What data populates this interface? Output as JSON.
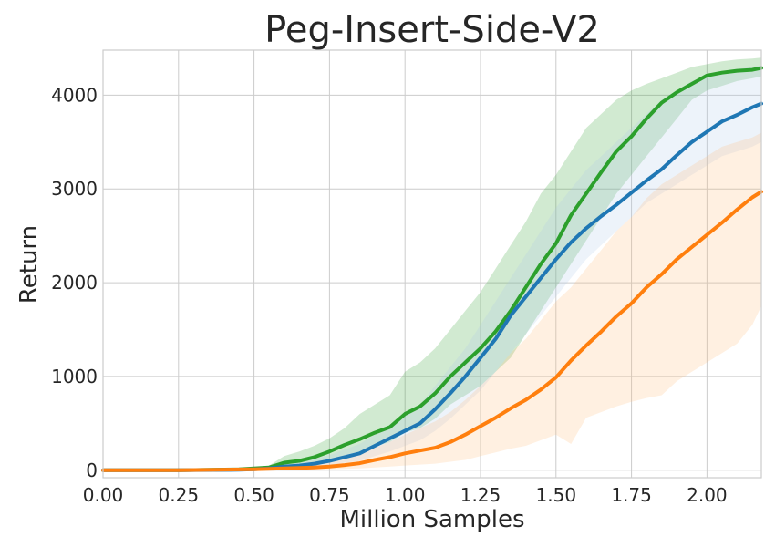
{
  "chart_data": {
    "type": "line",
    "title": "Peg-Insert-Side-V2",
    "xlabel": "Million Samples",
    "ylabel": "Return",
    "xlim": [
      0,
      2.18
    ],
    "ylim": [
      -80,
      4480
    ],
    "xticks": [
      0,
      0.25,
      0.5,
      0.75,
      1.0,
      1.25,
      1.5,
      1.75,
      2.0
    ],
    "xtick_labels": [
      "0.00",
      "0.25",
      "0.50",
      "0.75",
      "1.00",
      "1.25",
      "1.50",
      "1.75",
      "2.00"
    ],
    "yticks": [
      0,
      1000,
      2000,
      3000,
      4000
    ],
    "ytick_labels": [
      "0",
      "1000",
      "2000",
      "3000",
      "4000"
    ],
    "grid": true,
    "shaded_band": "variance",
    "series": [
      {
        "color": "#2ca02c",
        "fill": "#2ca02c",
        "x": [
          0,
          0.25,
          0.45,
          0.5,
          0.55,
          0.6,
          0.65,
          0.7,
          0.75,
          0.8,
          0.85,
          0.9,
          0.95,
          1.0,
          1.05,
          1.1,
          1.15,
          1.2,
          1.25,
          1.3,
          1.35,
          1.4,
          1.45,
          1.5,
          1.55,
          1.6,
          1.65,
          1.7,
          1.75,
          1.8,
          1.85,
          1.9,
          1.95,
          2.0,
          2.05,
          2.1,
          2.15,
          2.18
        ],
        "y": [
          0,
          0,
          10,
          20,
          30,
          80,
          100,
          140,
          200,
          270,
          330,
          400,
          460,
          600,
          680,
          820,
          1000,
          1150,
          1300,
          1480,
          1700,
          1950,
          2200,
          2420,
          2720,
          2950,
          3180,
          3400,
          3560,
          3750,
          3920,
          4030,
          4120,
          4210,
          4240,
          4260,
          4270,
          4290
        ],
        "lower": [
          0,
          0,
          5,
          10,
          20,
          40,
          60,
          80,
          110,
          160,
          200,
          250,
          300,
          400,
          450,
          550,
          700,
          800,
          900,
          1050,
          1200,
          1450,
          1700,
          1950,
          2200,
          2450,
          2700,
          2950,
          3150,
          3350,
          3550,
          3750,
          3950,
          4050,
          4100,
          4150,
          4180,
          4200
        ],
        "upper": [
          0,
          0,
          15,
          30,
          50,
          150,
          200,
          260,
          340,
          450,
          600,
          700,
          800,
          1050,
          1150,
          1300,
          1500,
          1700,
          1900,
          2150,
          2400,
          2650,
          2950,
          3150,
          3400,
          3650,
          3800,
          3950,
          4050,
          4120,
          4180,
          4240,
          4300,
          4330,
          4360,
          4380,
          4390,
          4400
        ]
      },
      {
        "color": "#1f77b4",
        "fill": "#aec7e8",
        "x": [
          0,
          0.25,
          0.45,
          0.5,
          0.55,
          0.6,
          0.65,
          0.7,
          0.75,
          0.8,
          0.85,
          0.9,
          0.95,
          1.0,
          1.05,
          1.1,
          1.15,
          1.2,
          1.25,
          1.3,
          1.35,
          1.4,
          1.45,
          1.5,
          1.55,
          1.6,
          1.65,
          1.7,
          1.75,
          1.8,
          1.85,
          1.9,
          1.95,
          2.0,
          2.05,
          2.1,
          2.15,
          2.18
        ],
        "y": [
          0,
          0,
          5,
          10,
          20,
          40,
          50,
          70,
          100,
          140,
          180,
          260,
          340,
          420,
          500,
          650,
          820,
          1000,
          1200,
          1400,
          1650,
          1850,
          2050,
          2250,
          2430,
          2580,
          2710,
          2830,
          2960,
          3090,
          3210,
          3360,
          3500,
          3610,
          3720,
          3790,
          3870,
          3910
        ],
        "lower": [
          0,
          0,
          3,
          5,
          10,
          20,
          30,
          40,
          55,
          80,
          100,
          150,
          200,
          260,
          320,
          420,
          550,
          700,
          850,
          1050,
          1250,
          1450,
          1650,
          1850,
          2050,
          2250,
          2400,
          2550,
          2700,
          2850,
          2950,
          3050,
          3150,
          3250,
          3350,
          3400,
          3450,
          3500
        ],
        "upper": [
          0,
          0,
          10,
          20,
          35,
          70,
          90,
          120,
          160,
          220,
          280,
          380,
          480,
          600,
          700,
          900,
          1100,
          1300,
          1550,
          1800,
          2050,
          2300,
          2550,
          2800,
          3000,
          3200,
          3350,
          3500,
          3650,
          3800,
          3950,
          4050,
          4150,
          4200,
          4250,
          4280,
          4300,
          4320
        ]
      },
      {
        "color": "#ff7f0e",
        "fill": "#ffbb78",
        "x": [
          0,
          0.25,
          0.5,
          0.55,
          0.6,
          0.65,
          0.7,
          0.75,
          0.8,
          0.85,
          0.9,
          0.95,
          1.0,
          1.05,
          1.1,
          1.15,
          1.2,
          1.25,
          1.3,
          1.35,
          1.4,
          1.45,
          1.5,
          1.55,
          1.6,
          1.65,
          1.7,
          1.75,
          1.8,
          1.85,
          1.9,
          1.95,
          2.0,
          2.05,
          2.1,
          2.15,
          2.18
        ],
        "y": [
          0,
          0,
          10,
          15,
          20,
          25,
          30,
          40,
          55,
          75,
          110,
          140,
          180,
          210,
          240,
          300,
          380,
          470,
          560,
          660,
          750,
          860,
          990,
          1170,
          1330,
          1480,
          1640,
          1780,
          1950,
          2090,
          2250,
          2380,
          2510,
          2640,
          2780,
          2910,
          2970
        ],
        "lower": [
          0,
          0,
          0,
          0,
          5,
          5,
          10,
          10,
          15,
          20,
          30,
          40,
          50,
          60,
          70,
          90,
          110,
          150,
          190,
          230,
          260,
          320,
          380,
          280,
          560,
          620,
          680,
          730,
          770,
          800,
          950,
          1050,
          1150,
          1250,
          1350,
          1550,
          1750
        ],
        "upper": [
          0,
          0,
          20,
          30,
          40,
          50,
          70,
          100,
          130,
          180,
          240,
          300,
          380,
          450,
          520,
          620,
          750,
          900,
          1050,
          1250,
          1400,
          1600,
          1800,
          1950,
          2150,
          2350,
          2550,
          2700,
          2900,
          3050,
          3150,
          3250,
          3350,
          3450,
          3500,
          3550,
          3600
        ]
      }
    ]
  }
}
